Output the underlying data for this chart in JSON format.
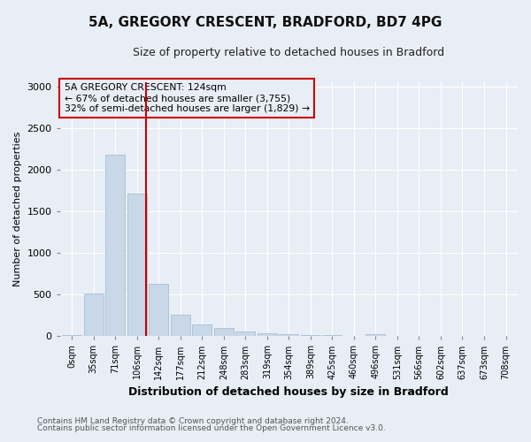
{
  "title": "5A, GREGORY CRESCENT, BRADFORD, BD7 4PG",
  "subtitle": "Size of property relative to detached houses in Bradford",
  "xlabel": "Distribution of detached houses by size in Bradford",
  "ylabel": "Number of detached properties",
  "footnote1": "Contains HM Land Registry data © Crown copyright and database right 2024.",
  "footnote2": "Contains public sector information licensed under the Open Government Licence v3.0.",
  "annotation_line1": "5A GREGORY CRESCENT: 124sqm",
  "annotation_line2": "← 67% of detached houses are smaller (3,755)",
  "annotation_line3": "32% of semi-detached houses are larger (1,829) →",
  "bar_labels": [
    "0sqm",
    "35sqm",
    "71sqm",
    "106sqm",
    "142sqm",
    "177sqm",
    "212sqm",
    "248sqm",
    "283sqm",
    "319sqm",
    "354sqm",
    "389sqm",
    "425sqm",
    "460sqm",
    "496sqm",
    "531sqm",
    "566sqm",
    "602sqm",
    "637sqm",
    "673sqm",
    "708sqm"
  ],
  "bar_values": [
    10,
    510,
    2180,
    1710,
    630,
    260,
    140,
    95,
    55,
    35,
    20,
    15,
    10,
    8,
    28,
    0,
    5,
    0,
    0,
    0,
    0
  ],
  "bar_color": "#c8d8e8",
  "bar_edge_color": "#a0b8cc",
  "vline_x": 3.43,
  "vline_color": "#cc0000",
  "ylim": [
    0,
    3050
  ],
  "yticks": [
    0,
    500,
    1000,
    1500,
    2000,
    2500,
    3000
  ],
  "bg_color": "#e8eef5",
  "grid_color": "#ffffff"
}
